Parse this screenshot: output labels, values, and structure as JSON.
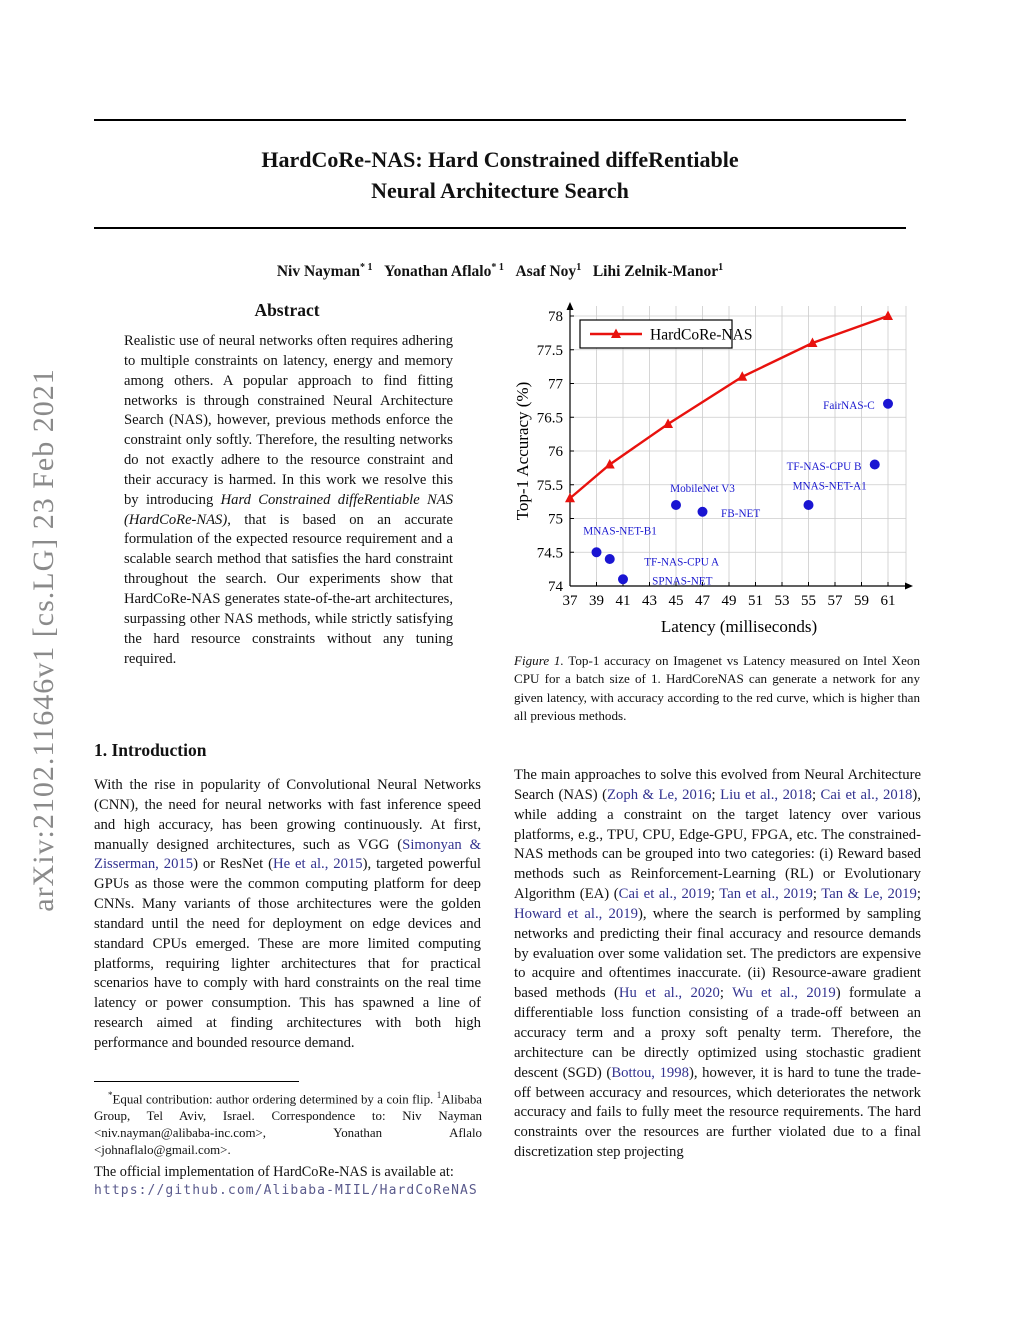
{
  "page": {
    "arxiv_watermark": "arXiv:2102.11646v1  [cs.LG]  23 Feb 2021",
    "title_line1": "HardCoRe-NAS: Hard Constrained diffeRentiable",
    "title_line2": "Neural Architecture Search"
  },
  "authors_segments": [
    {
      "t": "Niv Nayman"
    },
    {
      "t": "* 1",
      "s": "sup"
    },
    {
      "t": "   "
    },
    {
      "t": "Yonathan Aflalo"
    },
    {
      "t": "* 1",
      "s": "sup"
    },
    {
      "t": "   "
    },
    {
      "t": "Asaf Noy"
    },
    {
      "t": "1",
      "s": "sup"
    },
    {
      "t": "   "
    },
    {
      "t": "Lihi Zelnik-Manor"
    },
    {
      "t": "1",
      "s": "sup"
    }
  ],
  "abstract": {
    "heading": "Abstract",
    "body_segments": [
      {
        "t": "Realistic use of neural networks often requires adhering to multiple constraints on latency, energy and memory among others. A popular approach to find fitting networks is through constrained Neural Architecture Search (NAS), however, previous methods enforce the constraint only softly. Therefore, the resulting networks do not exactly adhere to the resource constraint and their accuracy is harmed. In this work we resolve this by introducing "
      },
      {
        "t": "Hard Constrained diffeRentiable NAS (HardCoRe-NAS)",
        "s": "i"
      },
      {
        "t": ", that is based on an accurate formulation of the expected resource requirement and a scalable search method that satisfies the hard constraint throughout the search. Our experiments show that HardCoRe-NAS generates state-of-the-art architectures, surpassing other NAS methods, while strictly satisfying the hard resource constraints without any tuning required."
      }
    ]
  },
  "introduction": {
    "heading": "1. Introduction",
    "body_segments": [
      {
        "t": "With the rise in popularity of Convolutional Neural Networks (CNN), the need for neural networks with fast inference speed and high accuracy, has been growing continuously. At first, manually designed architectures, such as VGG ("
      },
      {
        "t": "Simonyan & Zisserman, 2015",
        "s": "link"
      },
      {
        "t": ") or ResNet ("
      },
      {
        "t": "He et al., 2015",
        "s": "link"
      },
      {
        "t": "), targeted powerful GPUs as those were the common computing platform for deep CNNs. Many variants of those architectures were the golden standard until the need for deployment on edge devices and standard CPUs emerged. These are more limited computing platforms, requiring lighter architectures that for practical scenarios have to comply with hard constraints on the real time latency or power consumption. This has spawned a line of research aimed at finding architectures with both high performance and bounded resource demand."
      }
    ]
  },
  "footnote": {
    "segments": [
      {
        "t": "*",
        "s": "sup"
      },
      {
        "t": "Equal contribution:  author ordering determined by a coin flip. "
      },
      {
        "t": "1",
        "s": "sup"
      },
      {
        "t": "Alibaba Group, Tel Aviv, Israel.  Correspondence to: Niv Nayman <niv.nayman@alibaba-inc.com>, Yonathan Aflalo <johnaflalo@gmail.com>."
      }
    ]
  },
  "implementation": {
    "text": "The official implementation of HardCoRe-NAS is available at:",
    "url": "https://github.com/Alibaba-MIIL/HardCoReNAS"
  },
  "figure": {
    "caption_segments": [
      {
        "t": "Figure 1.",
        "s": "i"
      },
      {
        "t": " Top-1 accuracy on Imagenet vs Latency measured on Intel Xeon CPU for a batch size of 1. HardCoreNAS can generate a network for any given latency, with accuracy according to the red curve, which is higher than all previous methods."
      }
    ]
  },
  "right_column": {
    "body_segments": [
      {
        "t": "The main approaches to solve this evolved from Neural Architecture Search (NAS) ("
      },
      {
        "t": "Zoph & Le, 2016",
        "s": "link"
      },
      {
        "t": "; "
      },
      {
        "t": "Liu et al., 2018",
        "s": "link"
      },
      {
        "t": "; "
      },
      {
        "t": "Cai et al., 2018",
        "s": "link"
      },
      {
        "t": "), while adding a constraint on the target latency over various platforms, e.g., TPU, CPU, Edge-GPU, FPGA, etc.  The constrained-NAS methods can be grouped into two categories:  (i) Reward based methods such as Reinforcement-Learning (RL) or Evolutionary Algorithm (EA) ("
      },
      {
        "t": "Cai et al., 2019",
        "s": "link"
      },
      {
        "t": "; "
      },
      {
        "t": "Tan et al., 2019",
        "s": "link"
      },
      {
        "t": "; "
      },
      {
        "t": "Tan & Le, 2019",
        "s": "link"
      },
      {
        "t": "; "
      },
      {
        "t": "Howard et al., 2019",
        "s": "link"
      },
      {
        "t": "), where the search is performed by sampling networks and predicting their final accuracy and resource demands by evaluation over some validation set. The predictors are expensive to acquire and oftentimes inaccurate. (ii) Resource-aware gradient based methods ("
      },
      {
        "t": "Hu et al., 2020",
        "s": "link"
      },
      {
        "t": "; "
      },
      {
        "t": "Wu et al., 2019",
        "s": "link"
      },
      {
        "t": ") formulate a differentiable loss function consisting of a trade-off between an accuracy term and a proxy soft penalty term. Therefore, the architecture can be directly optimized using stochastic gradient descent (SGD) ("
      },
      {
        "t": "Bottou, 1998",
        "s": "link"
      },
      {
        "t": "), however, it is hard to tune the trade-off between accuracy and resources, which deteriorates the network accuracy and fails to fully meet the resource requirements.  The hard constraints over the resources are further violated due to a final discretization step projecting"
      }
    ]
  },
  "chart_data": {
    "type": "line+scatter",
    "title": "",
    "xlabel": "Latency (milliseconds)",
    "ylabel": "Top-1 Accuracy (%)",
    "xlim": [
      37,
      62
    ],
    "ylim": [
      74,
      78.2
    ],
    "x_ticks": [
      37,
      39,
      41,
      43,
      45,
      47,
      49,
      51,
      53,
      55,
      57,
      59,
      61
    ],
    "y_ticks": [
      74,
      74.5,
      75,
      75.5,
      76,
      76.5,
      77,
      77.5,
      78
    ],
    "grid": true,
    "legend": {
      "label": "HardCoRe-NAS",
      "position": "top-left"
    },
    "series": [
      {
        "name": "HardCoRe-NAS",
        "color": "#e8120e",
        "marker": "triangle",
        "points": [
          [
            37,
            75.3
          ],
          [
            40,
            75.8
          ],
          [
            44.4,
            76.4
          ],
          [
            50,
            77.1
          ],
          [
            55.3,
            77.6
          ],
          [
            61,
            78.0
          ]
        ]
      }
    ],
    "scatter": {
      "color": "#1a15d2",
      "label_color": "#1a18cf",
      "points": [
        {
          "label": "MNAS-NET-B1",
          "x": 39,
          "y": 74.5,
          "label_x": 38.0,
          "label_y": 74.82,
          "anchor": "start"
        },
        {
          "label": "TF-NAS-CPU A",
          "x": 40,
          "y": 74.4,
          "label_x": 42.6,
          "label_y": 74.36,
          "anchor": "start"
        },
        {
          "label": "SPNAS-NET",
          "x": 41,
          "y": 74.1,
          "label_x": 43.2,
          "label_y": 74.08,
          "anchor": "start"
        },
        {
          "label": "MobileNet V3",
          "x": 45,
          "y": 75.2,
          "label_x": 47.0,
          "label_y": 75.45,
          "anchor": "middle"
        },
        {
          "label": "FB-NET",
          "x": 47,
          "y": 75.1,
          "label_x": 48.4,
          "label_y": 75.08,
          "anchor": "start"
        },
        {
          "label": "MNAS-NET-A1",
          "x": 55,
          "y": 75.2,
          "label_x": 56.6,
          "label_y": 75.49,
          "anchor": "middle"
        },
        {
          "label": "TF-NAS-CPU B",
          "x": 60,
          "y": 75.8,
          "label_x": 59.0,
          "label_y": 75.78,
          "anchor": "end"
        },
        {
          "label": "FairNAS-C",
          "x": 61,
          "y": 76.7,
          "label_x": 60.0,
          "label_y": 76.68,
          "anchor": "end"
        }
      ]
    },
    "colors": {
      "grid": "#cccccc",
      "axis": "#000000"
    }
  }
}
